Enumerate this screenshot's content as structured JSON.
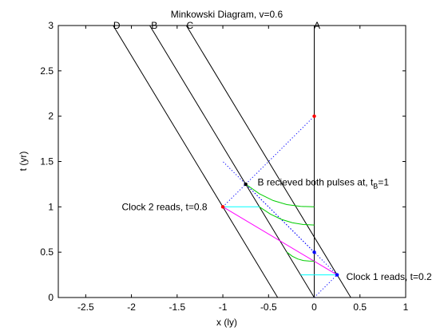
{
  "chart_data": {
    "type": "line",
    "title": "Minkowski Diagram, v=0.6",
    "xlabel": "x (ly)",
    "ylabel": "t (yr)",
    "xlim": [
      -2.8,
      1
    ],
    "ylim": [
      0,
      3
    ],
    "xticks": [
      -2.5,
      -2,
      -1.5,
      -1,
      -0.5,
      0,
      0.5,
      1
    ],
    "xtick_labels": [
      "-2.5",
      "-2",
      "-1.5",
      "-1",
      "-0.5",
      "0",
      "0.5",
      "1"
    ],
    "yticks": [
      0,
      0.5,
      1,
      1.5,
      2,
      2.5,
      3
    ],
    "ytick_labels": [
      "0",
      "0.5",
      "1",
      "1.5",
      "2",
      "2.5",
      "3"
    ],
    "grid": false,
    "series": [
      {
        "name": "A",
        "color": "#000000",
        "style": "solid",
        "x": [
          0,
          0
        ],
        "y": [
          0,
          3
        ]
      },
      {
        "name": "B",
        "color": "#000000",
        "style": "solid",
        "x": [
          0,
          -1.8
        ],
        "y": [
          0,
          3
        ]
      },
      {
        "name": "C",
        "color": "#000000",
        "style": "solid",
        "x": [
          0.4,
          -1.4
        ],
        "y": [
          0,
          3
        ]
      },
      {
        "name": "D",
        "color": "#000000",
        "style": "solid",
        "x": [
          -0.4,
          -2.2
        ],
        "y": [
          0,
          3
        ]
      },
      {
        "color": "#0000ff",
        "style": "dotted",
        "x": [
          0,
          0.25
        ],
        "y": [
          0,
          0.25
        ]
      },
      {
        "color": "#0000ff",
        "style": "dotted",
        "x": [
          0.25,
          -1
        ],
        "y": [
          0.25,
          1.5
        ]
      },
      {
        "color": "#0000ff",
        "style": "dotted",
        "x": [
          -1,
          0
        ],
        "y": [
          1,
          2
        ]
      },
      {
        "color": "#0000ff",
        "style": "dotted",
        "x": [
          0,
          -0.75
        ],
        "y": [
          0.5,
          1.25
        ]
      },
      {
        "color": "#00ffff",
        "style": "solid",
        "x": [
          -1,
          -0.6
        ],
        "y": [
          1,
          1
        ]
      },
      {
        "color": "#00ffff",
        "style": "solid",
        "x": [
          -0.15,
          0.25
        ],
        "y": [
          0.25,
          0.25
        ]
      },
      {
        "color": "#ff00ff",
        "style": "solid",
        "x": [
          -1,
          0.25
        ],
        "y": [
          1,
          0.25
        ]
      },
      {
        "color": "#00cc00",
        "style": "solid",
        "x": [
          -0.75,
          -0.6,
          -0.45,
          -0.3,
          -0.15,
          0
        ],
        "y": [
          1.25,
          1.145,
          1.07,
          1.025,
          1.005,
          1
        ]
      },
      {
        "color": "#00cc00",
        "style": "solid",
        "x": [
          -0.6,
          -0.48,
          -0.36,
          -0.24,
          -0.12,
          0
        ],
        "y": [
          1,
          0.92,
          0.862,
          0.825,
          0.805,
          0.8
        ]
      },
      {
        "color": "#00cc00",
        "style": "solid",
        "x": [
          -0.3,
          -0.24,
          -0.18,
          -0.12,
          -0.06,
          0
        ],
        "y": [
          0.5,
          0.455,
          0.425,
          0.408,
          0.402,
          0.4
        ]
      }
    ],
    "points": [
      {
        "x": 0,
        "y": 2,
        "color": "#ff0000"
      },
      {
        "x": -1,
        "y": 1,
        "color": "#ff0000"
      },
      {
        "x": -0.75,
        "y": 1.25,
        "color": "#000000"
      },
      {
        "x": 0,
        "y": 0.5,
        "color": "#0000ff"
      },
      {
        "x": 0.25,
        "y": 0.25,
        "color": "#0000ff"
      }
    ],
    "annotations": [
      {
        "text": "A",
        "x": 0.03,
        "y": 3,
        "anchor": "middle"
      },
      {
        "text": "B",
        "x": -1.75,
        "y": 3,
        "anchor": "middle"
      },
      {
        "text": "C",
        "x": -1.36,
        "y": 3,
        "anchor": "middle"
      },
      {
        "text": "D",
        "x": -2.16,
        "y": 3,
        "anchor": "middle"
      },
      {
        "text": "Clock 2 reads, t=0.8",
        "x": -1.17,
        "y": 1,
        "anchor": "end"
      },
      {
        "text": "Clock 1 reads, t=0.2",
        "x": 0.35,
        "y": 0.23,
        "anchor": "start"
      },
      {
        "text": "B recieved both pulses at, t",
        "sub": "B",
        "after": "=1",
        "x": -0.62,
        "y": 1.27,
        "anchor": "start"
      }
    ]
  }
}
